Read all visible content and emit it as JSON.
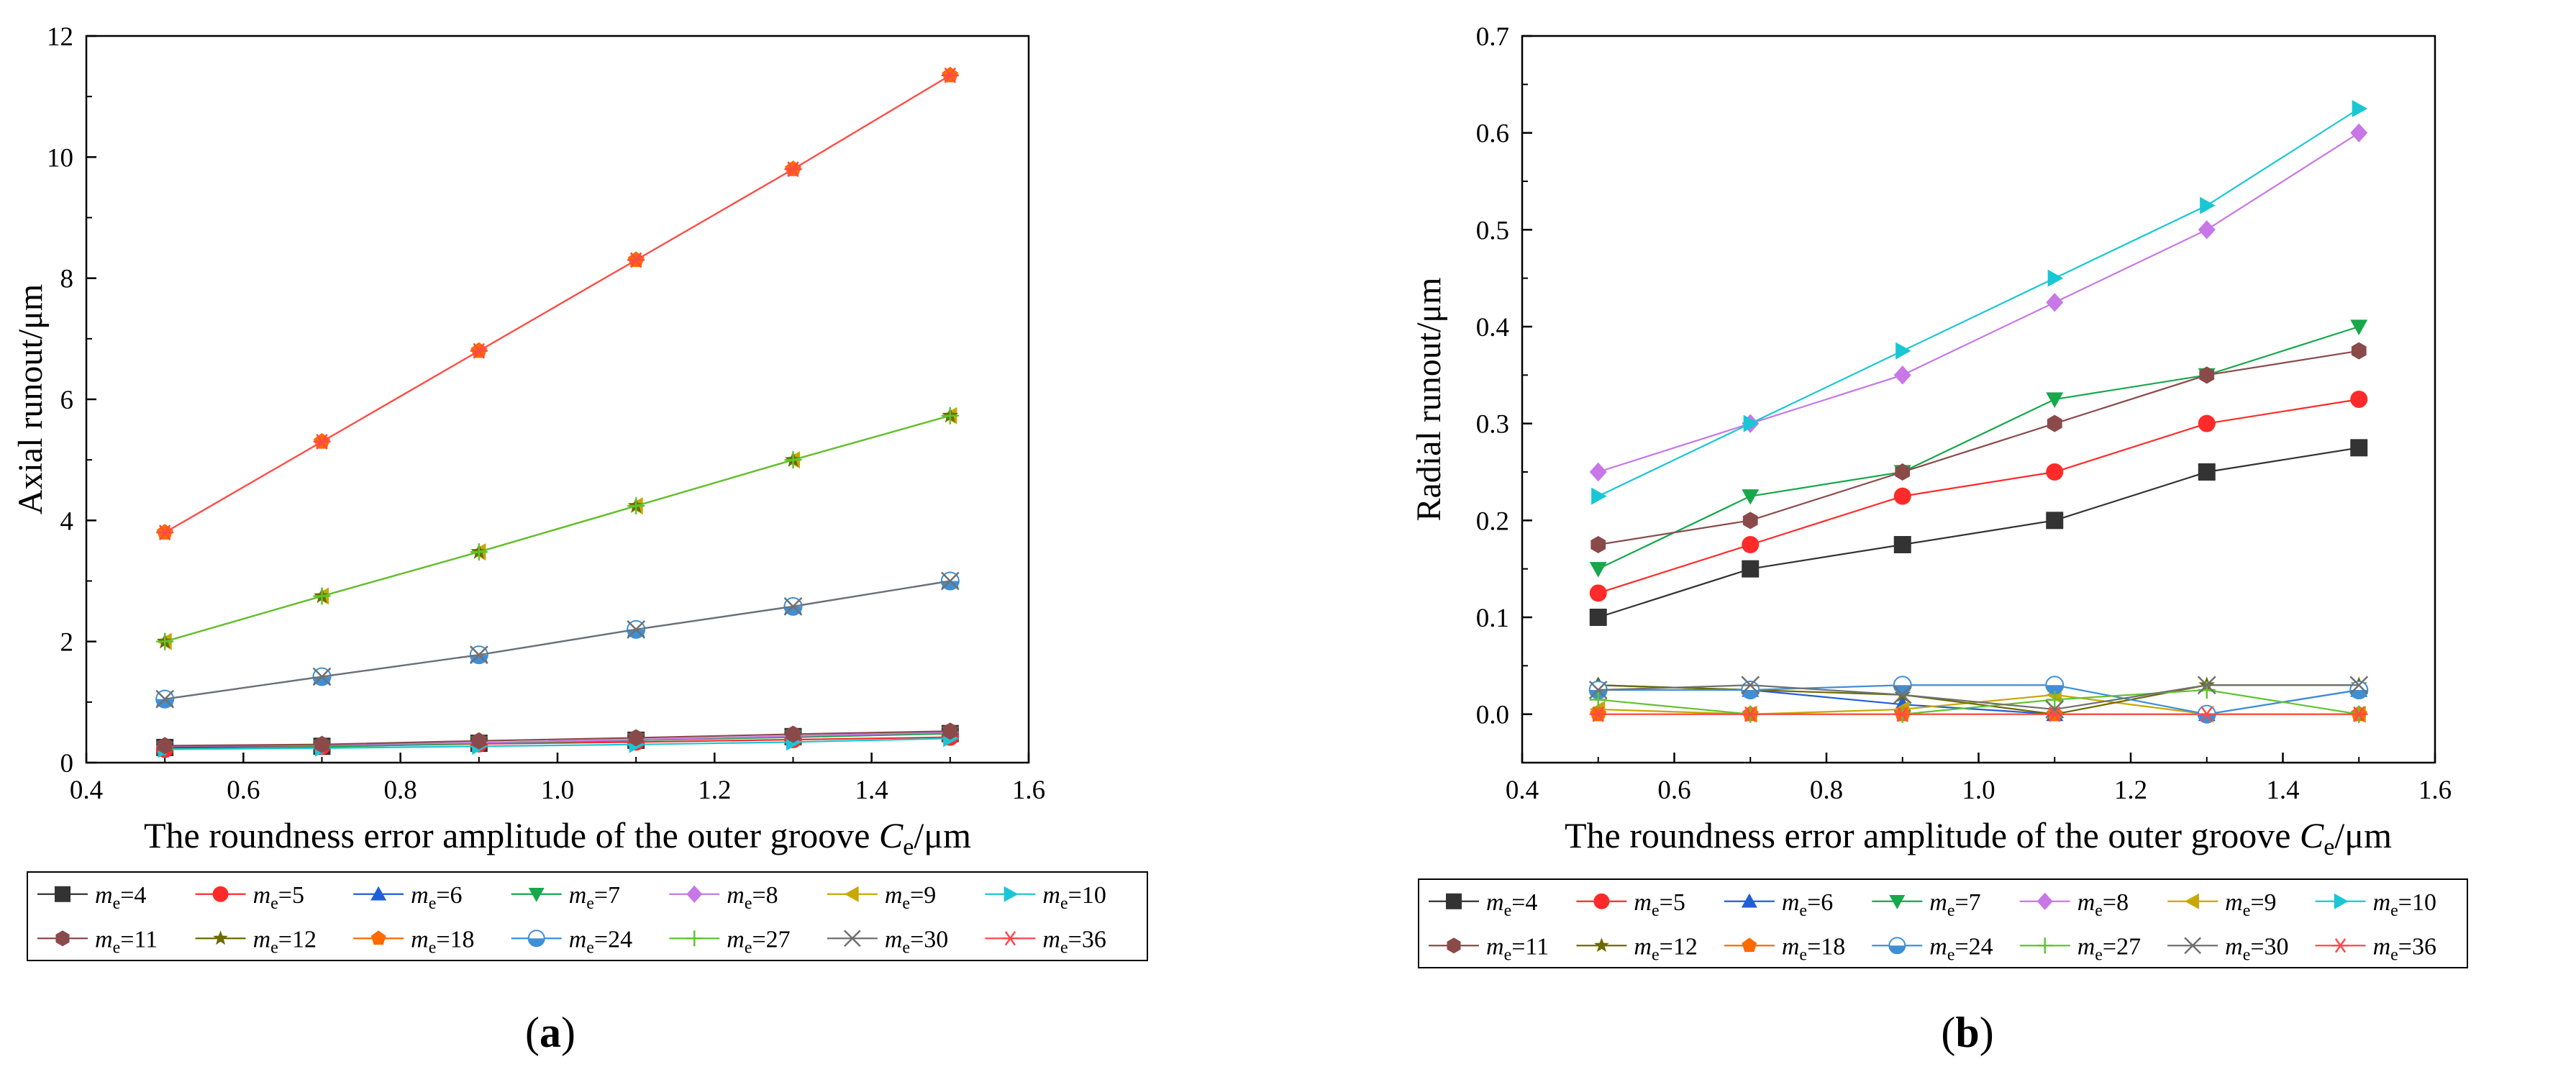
{
  "chart_data": [
    {
      "type": "line",
      "panel_label_open": "(",
      "panel_label_letter": "a",
      "panel_label_close": ")",
      "xlabel_main": "The roundness error amplitude of the outer groove ",
      "xlabel_var": "C",
      "xlabel_sub": "e",
      "xlabel_unit": "/μm",
      "ylabel": "Axial runout/μm",
      "xlim": [
        0.4,
        1.6
      ],
      "ylim": [
        0,
        12
      ],
      "xticks": [
        "0.4",
        "0.6",
        "0.8",
        "1.0",
        "1.2",
        "1.4",
        "1.6"
      ],
      "yticks": [
        "0",
        "2",
        "4",
        "6",
        "8",
        "10",
        "12"
      ],
      "x": [
        0.5,
        0.7,
        0.9,
        1.1,
        1.3,
        1.5
      ],
      "series": [
        {
          "name": "4",
          "marker": "square",
          "color": "#333333",
          "values": [
            0.25,
            0.27,
            0.32,
            0.37,
            0.43,
            0.48
          ]
        },
        {
          "name": "5",
          "marker": "circle",
          "color": "#ff2a2a",
          "values": [
            0.22,
            0.27,
            0.31,
            0.34,
            0.38,
            0.42
          ]
        },
        {
          "name": "6",
          "marker": "triangle-up",
          "color": "#1f5fd8",
          "values": [
            1.05,
            1.42,
            1.78,
            2.2,
            2.58,
            3.0
          ]
        },
        {
          "name": "7",
          "marker": "triangle-down",
          "color": "#16a84b",
          "values": [
            0.23,
            0.26,
            0.32,
            0.37,
            0.42,
            0.48
          ]
        },
        {
          "name": "8",
          "marker": "diamond",
          "color": "#c777e6",
          "values": [
            0.27,
            0.29,
            0.33,
            0.38,
            0.44,
            0.5
          ]
        },
        {
          "name": "9",
          "marker": "triangle-left",
          "color": "#c8a800",
          "values": [
            2.0,
            2.75,
            3.48,
            4.24,
            5.0,
            5.73
          ]
        },
        {
          "name": "10",
          "marker": "triangle-right",
          "color": "#19c7d4",
          "values": [
            0.22,
            0.24,
            0.27,
            0.3,
            0.34,
            0.4
          ]
        },
        {
          "name": "11",
          "marker": "hexagon",
          "color": "#8b4a4a",
          "values": [
            0.28,
            0.3,
            0.36,
            0.41,
            0.47,
            0.52
          ]
        },
        {
          "name": "12",
          "marker": "star",
          "color": "#6b6b00",
          "values": [
            2.0,
            2.75,
            3.48,
            4.24,
            5.0,
            5.73
          ]
        },
        {
          "name": "18",
          "marker": "pentagon",
          "color": "#ff6a00",
          "values": [
            3.8,
            5.3,
            6.8,
            8.3,
            9.8,
            11.35
          ]
        },
        {
          "name": "24",
          "marker": "circle-half",
          "color": "#3f8fd6",
          "values": [
            1.05,
            1.42,
            1.78,
            2.2,
            2.58,
            3.0
          ]
        },
        {
          "name": "27",
          "marker": "plus",
          "color": "#5fc42f",
          "values": [
            2.0,
            2.75,
            3.48,
            4.24,
            5.0,
            5.73
          ]
        },
        {
          "name": "30",
          "marker": "x",
          "color": "#707070",
          "values": [
            1.05,
            1.42,
            1.78,
            2.2,
            2.58,
            3.0
          ]
        },
        {
          "name": "36",
          "marker": "asterisk",
          "color": "#ff4a4a",
          "values": [
            3.8,
            5.3,
            6.8,
            8.3,
            9.8,
            11.35
          ]
        }
      ],
      "legend_prefix_var": "m",
      "legend_prefix_sub": "e",
      "legend_eq": "="
    },
    {
      "type": "line",
      "panel_label_open": "(",
      "panel_label_letter": "b",
      "panel_label_close": ")",
      "xlabel_main": "The roundness error amplitude of the outer groove ",
      "xlabel_var": "C",
      "xlabel_sub": "e",
      "xlabel_unit": "/μm",
      "ylabel": "Radial runout/μm",
      "xlim": [
        0.4,
        1.6
      ],
      "ylim": [
        -0.05,
        0.7
      ],
      "xticks": [
        "0.4",
        "0.6",
        "0.8",
        "1.0",
        "1.2",
        "1.4",
        "1.6"
      ],
      "yticks": [
        "0.0",
        "0.1",
        "0.2",
        "0.3",
        "0.4",
        "0.5",
        "0.6",
        "0.7"
      ],
      "x": [
        0.5,
        0.7,
        0.9,
        1.1,
        1.3,
        1.5
      ],
      "series": [
        {
          "name": "4",
          "marker": "square",
          "color": "#333333",
          "values": [
            0.1,
            0.15,
            0.175,
            0.2,
            0.25,
            0.275
          ]
        },
        {
          "name": "5",
          "marker": "circle",
          "color": "#ff2a2a",
          "values": [
            0.125,
            0.175,
            0.225,
            0.25,
            0.3,
            0.325
          ]
        },
        {
          "name": "6",
          "marker": "triangle-up",
          "color": "#1f5fd8",
          "values": [
            0.03,
            0.025,
            0.01,
            0.0,
            0.0,
            0.025
          ]
        },
        {
          "name": "7",
          "marker": "triangle-down",
          "color": "#16a84b",
          "values": [
            0.15,
            0.225,
            0.25,
            0.325,
            0.35,
            0.4
          ]
        },
        {
          "name": "8",
          "marker": "diamond",
          "color": "#c777e6",
          "values": [
            0.25,
            0.3,
            0.35,
            0.425,
            0.5,
            0.6
          ]
        },
        {
          "name": "9",
          "marker": "triangle-left",
          "color": "#c8a800",
          "values": [
            0.005,
            0.0,
            0.005,
            0.02,
            0.0,
            0.0
          ]
        },
        {
          "name": "10",
          "marker": "triangle-right",
          "color": "#19c7d4",
          "values": [
            0.225,
            0.3,
            0.375,
            0.45,
            0.525,
            0.625
          ]
        },
        {
          "name": "11",
          "marker": "hexagon",
          "color": "#8b4a4a",
          "values": [
            0.175,
            0.2,
            0.25,
            0.3,
            0.35,
            0.375
          ]
        },
        {
          "name": "12",
          "marker": "star",
          "color": "#6b6b00",
          "values": [
            0.03,
            0.025,
            0.02,
            0.0,
            0.03,
            0.03
          ]
        },
        {
          "name": "18",
          "marker": "pentagon",
          "color": "#ff6a00",
          "values": [
            0.0,
            0.0,
            0.0,
            0.0,
            0.0,
            0.0
          ]
        },
        {
          "name": "24",
          "marker": "circle-half",
          "color": "#3f8fd6",
          "values": [
            0.025,
            0.025,
            0.03,
            0.03,
            0.0,
            0.025
          ]
        },
        {
          "name": "27",
          "marker": "plus",
          "color": "#5fc42f",
          "values": [
            0.015,
            0.0,
            0.0,
            0.015,
            0.025,
            0.0
          ]
        },
        {
          "name": "30",
          "marker": "x",
          "color": "#707070",
          "values": [
            0.025,
            0.03,
            0.02,
            0.005,
            0.03,
            0.03
          ]
        },
        {
          "name": "36",
          "marker": "asterisk",
          "color": "#ff4a4a",
          "values": [
            0.0,
            0.0,
            0.0,
            0.0,
            0.0,
            0.0
          ]
        }
      ],
      "legend_prefix_var": "m",
      "legend_prefix_sub": "e",
      "legend_eq": "="
    }
  ]
}
